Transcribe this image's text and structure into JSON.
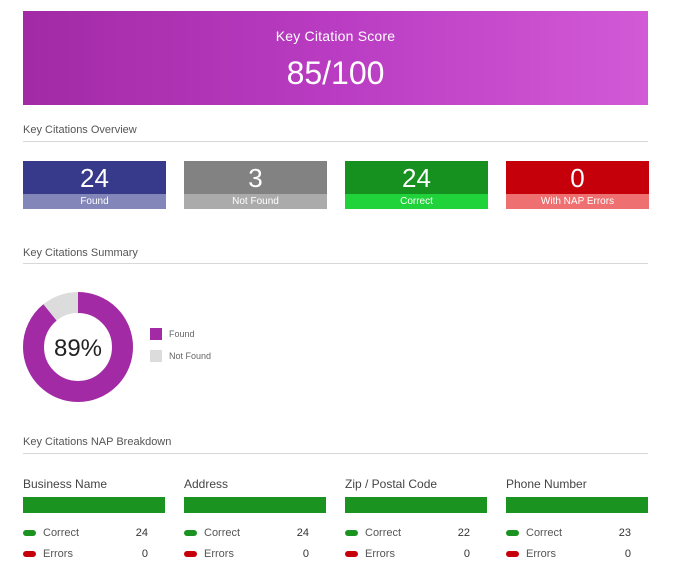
{
  "banner": {
    "title": "Key Citation Score",
    "score": "85/100"
  },
  "overview": {
    "title": "Key Citations Overview",
    "stats": [
      {
        "value": "24",
        "label": "Found",
        "color_top": "#373a8a",
        "color_bottom": "#8386b8"
      },
      {
        "value": "3",
        "label": "Not Found",
        "color_top": "#828282",
        "color_bottom": "#ababab"
      },
      {
        "value": "24",
        "label": "Correct",
        "color_top": "#16901f",
        "color_bottom": "#20d33a"
      },
      {
        "value": "0",
        "label": "With NAP Errors",
        "color_top": "#c5000b",
        "color_bottom": "#ee7070"
      }
    ]
  },
  "summary": {
    "title": "Key Citations Summary",
    "percent_label": "89%",
    "found_fraction": 0.89,
    "legend": [
      {
        "label": "Found",
        "color": "#a22aa5"
      },
      {
        "label": "Not Found",
        "color": "#dcdcdc"
      }
    ]
  },
  "nap": {
    "title": "Key Citations NAP Breakdown",
    "correct_color": "#1b9321",
    "error_color": "#c5000b",
    "columns": [
      {
        "header": "Business Name",
        "correct_label": "Correct",
        "correct": "24",
        "errors_label": "Errors",
        "errors": "0"
      },
      {
        "header": "Address",
        "correct_label": "Correct",
        "correct": "24",
        "errors_label": "Errors",
        "errors": "0"
      },
      {
        "header": "Zip / Postal Code",
        "correct_label": "Correct",
        "correct": "22",
        "errors_label": "Errors",
        "errors": "0"
      },
      {
        "header": "Phone Number",
        "correct_label": "Correct",
        "correct": "23",
        "errors_label": "Errors",
        "errors": "0"
      }
    ]
  }
}
